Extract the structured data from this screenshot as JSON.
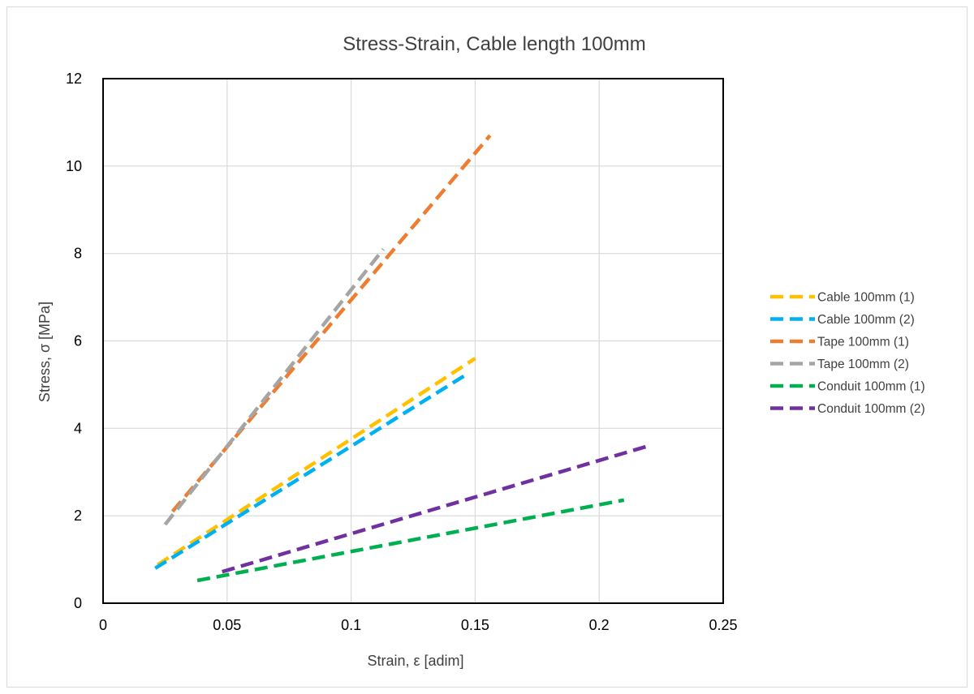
{
  "chart_data": {
    "type": "line",
    "title": "Stress-Strain, Cable length 100mm",
    "xlabel": "Strain, ε [adim]",
    "ylabel": "Stress, σ [MPa]",
    "xlim": [
      0,
      0.25
    ],
    "ylim": [
      0,
      12
    ],
    "xticks": [
      "0",
      "0.05",
      "0.1",
      "0.15",
      "0.2",
      "0.25"
    ],
    "yticks": [
      "0",
      "2",
      "4",
      "6",
      "8",
      "10",
      "12"
    ],
    "grid": true,
    "legend_position": "right",
    "line_style": "dashed",
    "series": [
      {
        "name": "Cable 100mm (1)",
        "color": "#FFC000",
        "points": [
          [
            0.022,
            0.88
          ],
          [
            0.15,
            5.6
          ]
        ]
      },
      {
        "name": "Cable 100mm (2)",
        "color": "#00B0F0",
        "points": [
          [
            0.021,
            0.8
          ],
          [
            0.147,
            5.25
          ]
        ]
      },
      {
        "name": "Tape 100mm (1)",
        "color": "#ED7D31",
        "points": [
          [
            0.028,
            2.1
          ],
          [
            0.156,
            10.7
          ]
        ]
      },
      {
        "name": "Tape 100mm (2)",
        "color": "#A5A5A5",
        "points": [
          [
            0.025,
            1.8
          ],
          [
            0.113,
            8.1
          ]
        ]
      },
      {
        "name": "Conduit 100mm (1)",
        "color": "#00B050",
        "points": [
          [
            0.038,
            0.52
          ],
          [
            0.21,
            2.36
          ]
        ]
      },
      {
        "name": "Conduit 100mm (2)",
        "color": "#7030A0",
        "points": [
          [
            0.048,
            0.72
          ],
          [
            0.22,
            3.6
          ]
        ]
      }
    ]
  }
}
